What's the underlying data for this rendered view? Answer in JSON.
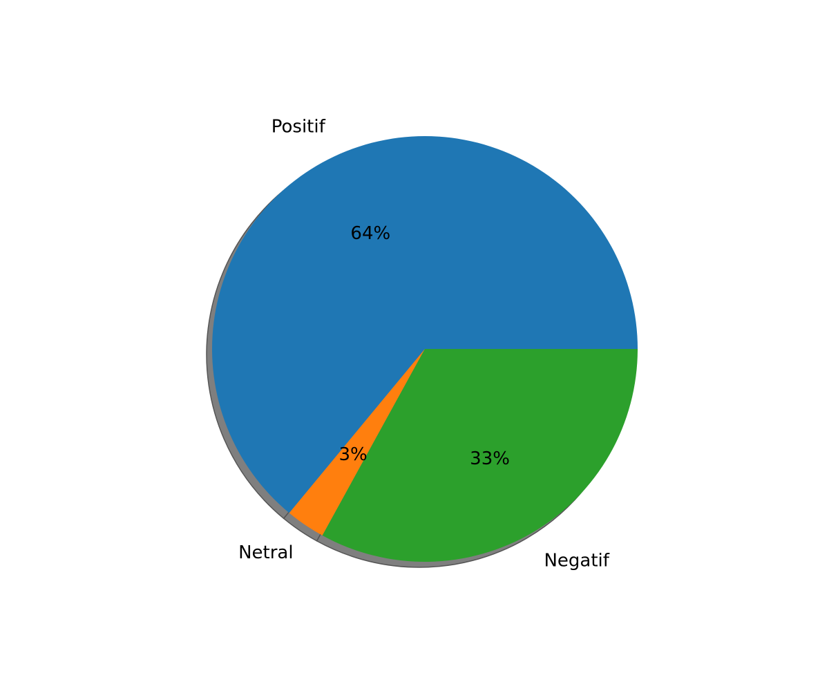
{
  "chart_data": {
    "type": "pie",
    "slices": [
      {
        "label": "Positif",
        "value": 64,
        "pct_label": "64%",
        "color": "#1f77b4"
      },
      {
        "label": "Netral",
        "value": 3,
        "pct_label": "3%",
        "color": "#ff7f0e"
      },
      {
        "label": "Negatif",
        "value": 33,
        "pct_label": "33%",
        "color": "#2ca02c"
      }
    ],
    "start_angle_deg": 0,
    "direction": "counterclockwise",
    "shadow": true,
    "shadow_color": "#7f7f7f"
  }
}
